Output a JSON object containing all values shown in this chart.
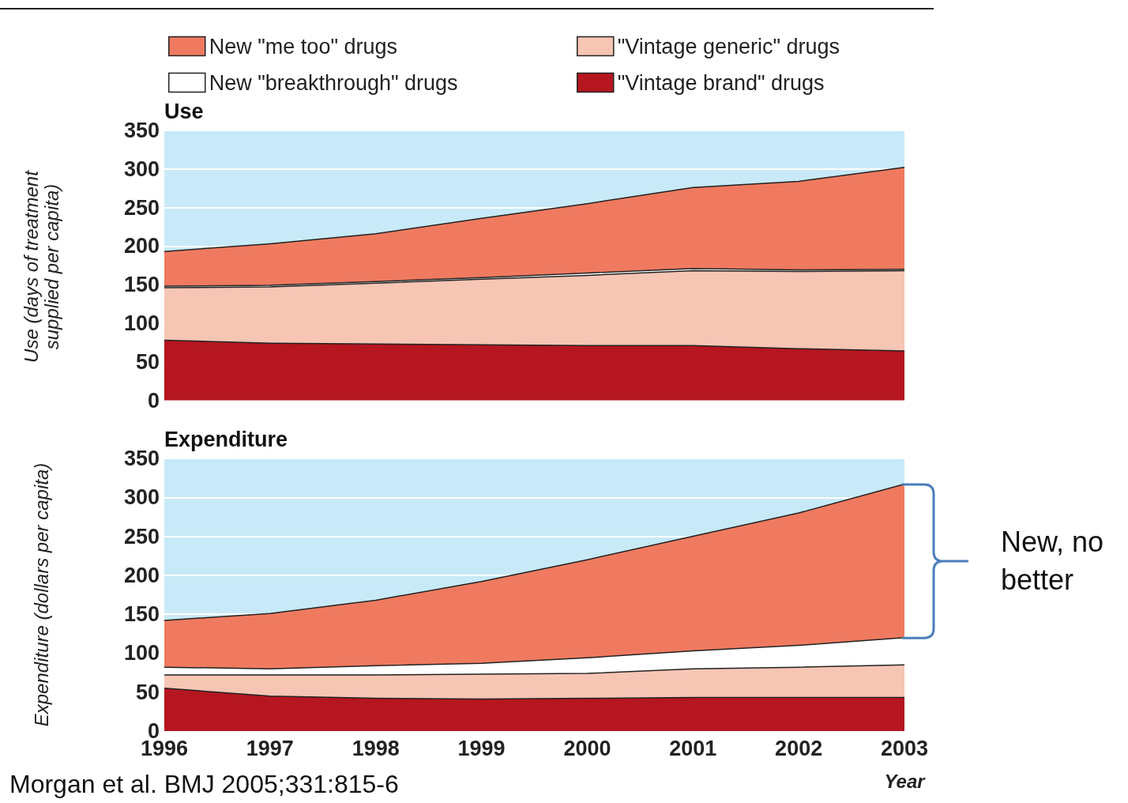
{
  "chart_data": [
    {
      "type": "area",
      "title": "Use",
      "ylabel": "Use (days of treatment\nsupplied per capita)",
      "categories": [
        "1996",
        "1997",
        "1998",
        "1999",
        "2000",
        "2001",
        "2002",
        "2003"
      ],
      "stacked": true,
      "ylim": [
        0,
        350
      ],
      "yticks": [
        0,
        50,
        100,
        150,
        200,
        250,
        300,
        350
      ],
      "grid": "y",
      "legend": "top",
      "tick_labels": "y",
      "series": [
        {
          "name": "\"Vintage brand\" drugs",
          "color": "#b5161f",
          "values": [
            78,
            74,
            73,
            72,
            71,
            71,
            67,
            64
          ]
        },
        {
          "name": "\"Vintage generic\" drugs",
          "color": "#f7c5b4",
          "values": [
            68,
            73,
            79,
            85,
            91,
            97,
            100,
            104
          ]
        },
        {
          "name": "New \"breakthrough\" drugs",
          "color": "#ffffff",
          "values": [
            2,
            2,
            2,
            2,
            3,
            3,
            2,
            2
          ]
        },
        {
          "name": "New \"me too\" drugs",
          "color": "#ef7a60",
          "values": [
            45,
            54,
            62,
            77,
            90,
            105,
            115,
            132
          ]
        }
      ]
    },
    {
      "type": "area",
      "title": "Expenditure",
      "ylabel": "Expenditure (dollars per capita)",
      "xlabel": "Year",
      "categories": [
        "1996",
        "1997",
        "1998",
        "1999",
        "2000",
        "2001",
        "2002",
        "2003"
      ],
      "stacked": true,
      "ylim": [
        0,
        350
      ],
      "yticks": [
        0,
        50,
        100,
        150,
        200,
        250,
        300,
        350
      ],
      "grid": "y",
      "series": [
        {
          "color": "#b5161f",
          "values": [
            55,
            45,
            42,
            41,
            42,
            43,
            43,
            43
          ]
        },
        {
          "color": "#f7c5b4",
          "values": [
            17,
            27,
            30,
            32,
            32,
            37,
            39,
            42
          ]
        },
        {
          "color": "#ffffff",
          "values": [
            10,
            8,
            12,
            14,
            20,
            23,
            28,
            35
          ]
        },
        {
          "color": "#ef7a60",
          "values": [
            60,
            71,
            84,
            105,
            126,
            147,
            170,
            197
          ]
        }
      ],
      "annotations": [
        {
          "text": "New, no\nbetter",
          "x": "2003",
          "y": 317
        },
        "Morgan et al. BMJ 2005;331:815-6"
      ]
    }
  ]
}
